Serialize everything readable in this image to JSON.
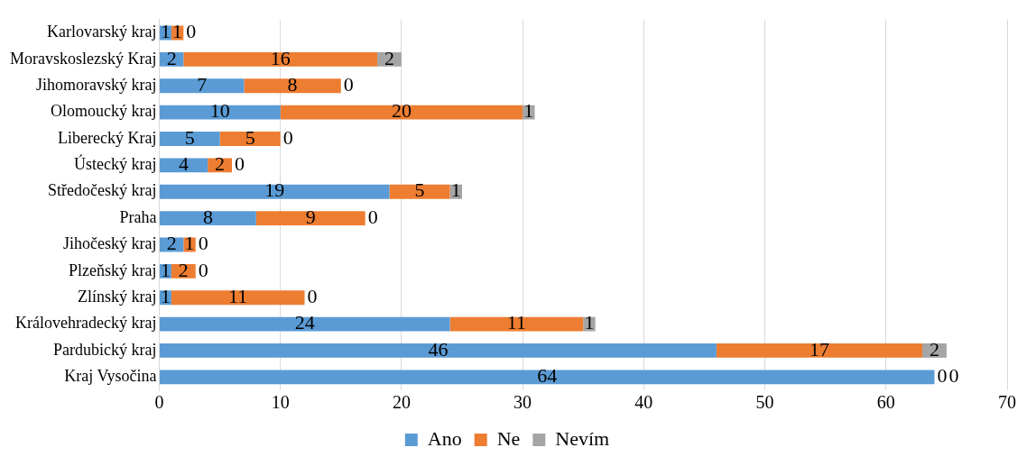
{
  "chart_data": {
    "type": "bar",
    "orientation": "horizontal",
    "stacked": true,
    "categories": [
      "Karlovarský kraj",
      "Moravskoslezský Kraj",
      "Jihomoravský kraj",
      "Olomoucký kraj",
      "Liberecký Kraj",
      "Ústecký kraj",
      "Středočeský kraj",
      "Praha",
      "Jihočeský kraj",
      "Plzeňský kraj",
      "Zlínský kraj",
      "Královehradecký kraj",
      "Pardubický kraj",
      "Kraj Vysočina"
    ],
    "series": [
      {
        "name": "Ano",
        "color": "#5b9bd5",
        "values": [
          1,
          2,
          7,
          10,
          5,
          4,
          19,
          8,
          2,
          1,
          1,
          24,
          46,
          64
        ]
      },
      {
        "name": "Ne",
        "color": "#ed7d31",
        "values": [
          1,
          16,
          8,
          20,
          5,
          2,
          5,
          9,
          1,
          2,
          11,
          11,
          17,
          0
        ]
      },
      {
        "name": "Nevím",
        "color": "#a5a5a5",
        "values": [
          0,
          2,
          0,
          1,
          0,
          0,
          1,
          0,
          0,
          0,
          0,
          1,
          2,
          0
        ]
      }
    ],
    "xlim": [
      0,
      70
    ],
    "xticks": [
      0,
      10,
      20,
      30,
      40,
      50,
      60,
      70
    ],
    "grid": "x",
    "legend": "bottom",
    "data_labels": true
  }
}
